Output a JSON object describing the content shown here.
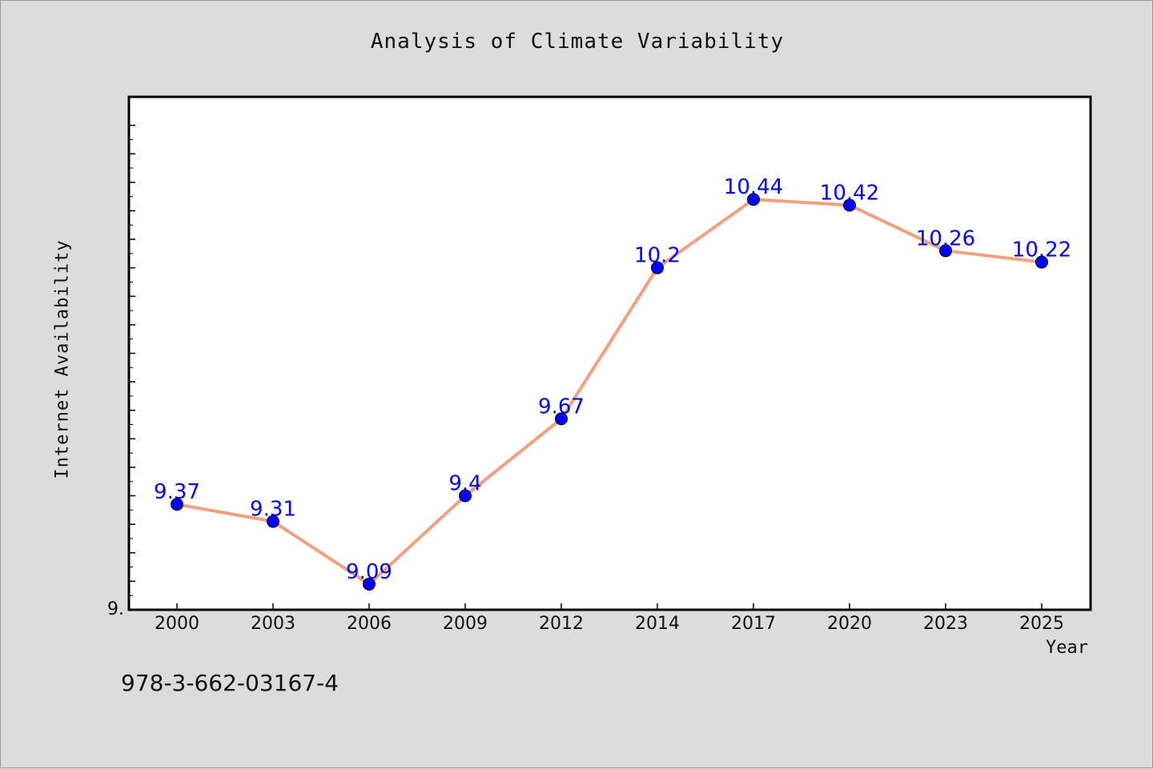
{
  "chart_data": {
    "type": "line",
    "title": "Analysis of Climate Variability",
    "xlabel": "Year",
    "ylabel": "Internet Availability",
    "categories": [
      "2000",
      "2003",
      "2006",
      "2009",
      "2012",
      "2014",
      "2017",
      "2020",
      "2023",
      "2025"
    ],
    "series": [
      {
        "values": [
          9.37,
          9.31,
          9.09,
          9.4,
          9.67,
          10.2,
          10.44,
          10.42,
          10.26,
          10.22
        ],
        "data_labels": [
          "9.37",
          "9.31",
          "9.09",
          "9.4",
          "9.67",
          "10.2",
          "10.44",
          "10.42",
          "10.26",
          "10.22"
        ],
        "line_color": "#f4a07e",
        "marker_color": "#0000ff"
      }
    ],
    "ylim": [
      9.0,
      10.8
    ],
    "y_tick_label": "9.",
    "grid": false,
    "background": "#dcdcdc",
    "plot_background": "#ffffff"
  },
  "footer": {
    "isbn": "978-3-662-03167-4"
  }
}
